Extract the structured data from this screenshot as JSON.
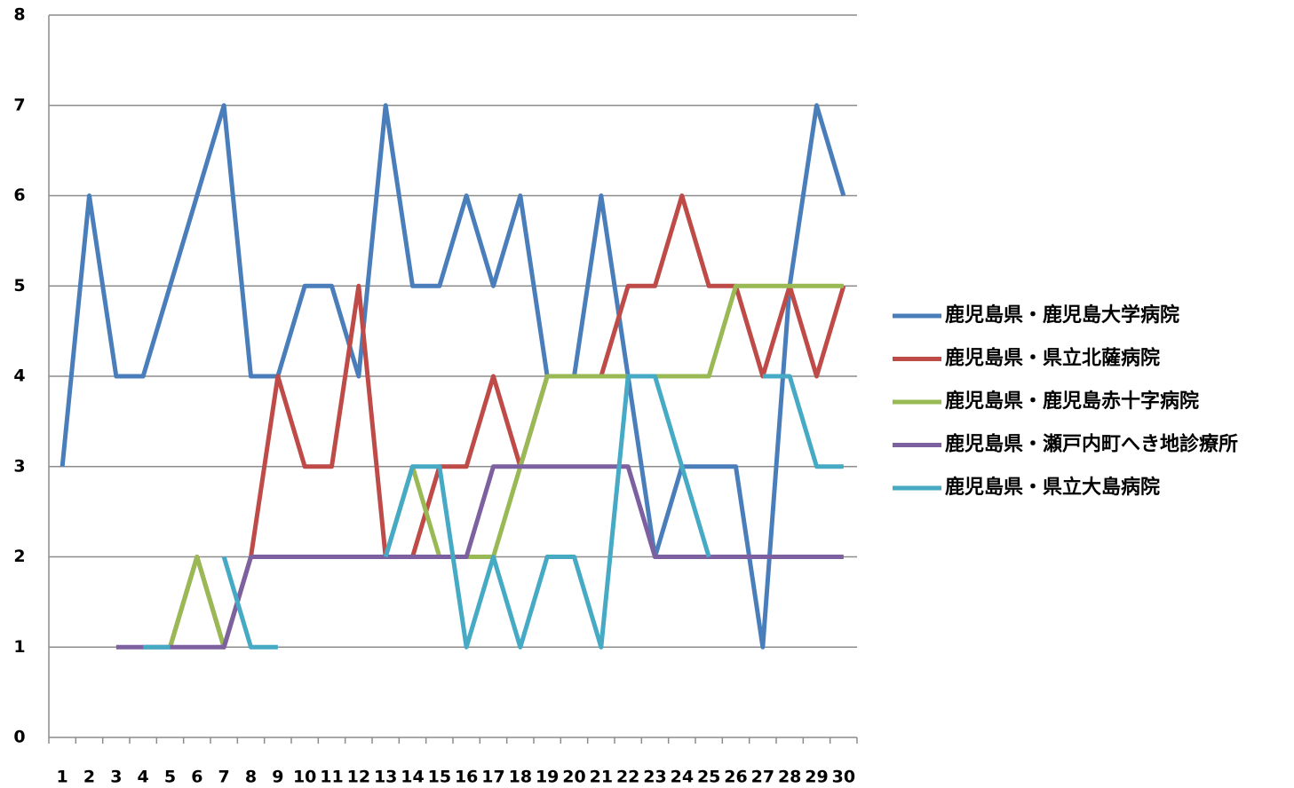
{
  "chart_data": {
    "type": "line",
    "categories": [
      "1",
      "2",
      "3",
      "4",
      "5",
      "6",
      "7",
      "8",
      "9",
      "10",
      "11",
      "12",
      "13",
      "14",
      "15",
      "16",
      "17",
      "18",
      "19",
      "20",
      "21",
      "22",
      "23",
      "24",
      "25",
      "26",
      "27",
      "28",
      "29",
      "30"
    ],
    "series": [
      {
        "name": "鹿児島県・鹿児島大学病院",
        "color": "#4a7ebb",
        "values": [
          3,
          6,
          4,
          4,
          5,
          6,
          7,
          4,
          4,
          5,
          5,
          4,
          7,
          5,
          5,
          6,
          5,
          6,
          4,
          4,
          6,
          4,
          2,
          3,
          3,
          3,
          1,
          5,
          7,
          6
        ]
      },
      {
        "name": "鹿児島県・県立北薩病院",
        "color": "#be4b48",
        "values": [
          null,
          null,
          null,
          null,
          1,
          2,
          1,
          2,
          4,
          3,
          3,
          5,
          2,
          2,
          3,
          3,
          4,
          3,
          4,
          4,
          4,
          5,
          5,
          6,
          5,
          5,
          4,
          5,
          4,
          5
        ]
      },
      {
        "name": "鹿児島県・鹿児島赤十字病院",
        "color": "#98b954",
        "values": [
          null,
          null,
          null,
          null,
          1,
          2,
          1,
          2,
          2,
          2,
          2,
          2,
          2,
          3,
          2,
          2,
          2,
          3,
          4,
          4,
          4,
          4,
          4,
          4,
          4,
          5,
          5,
          5,
          5,
          5
        ]
      },
      {
        "name": "鹿児島県・瀬戸内町へき地診療所",
        "color": "#7d60a0",
        "values": [
          null,
          null,
          1,
          1,
          1,
          1,
          1,
          2,
          2,
          2,
          2,
          2,
          2,
          2,
          2,
          2,
          3,
          3,
          3,
          3,
          3,
          3,
          2,
          2,
          2,
          2,
          2,
          2,
          2,
          2
        ]
      },
      {
        "name": "鹿児島県・県立大島病院",
        "color": "#46aac5",
        "values": [
          null,
          null,
          null,
          1,
          1,
          null,
          2,
          1,
          1,
          null,
          null,
          null,
          2,
          3,
          3,
          1,
          2,
          1,
          2,
          2,
          1,
          4,
          4,
          3,
          2,
          null,
          4,
          4,
          3,
          3
        ]
      }
    ],
    "ylim": [
      0,
      8
    ],
    "yticks": [
      0,
      1,
      2,
      3,
      4,
      5,
      6,
      7,
      8
    ],
    "grid": true,
    "legend": "right"
  }
}
